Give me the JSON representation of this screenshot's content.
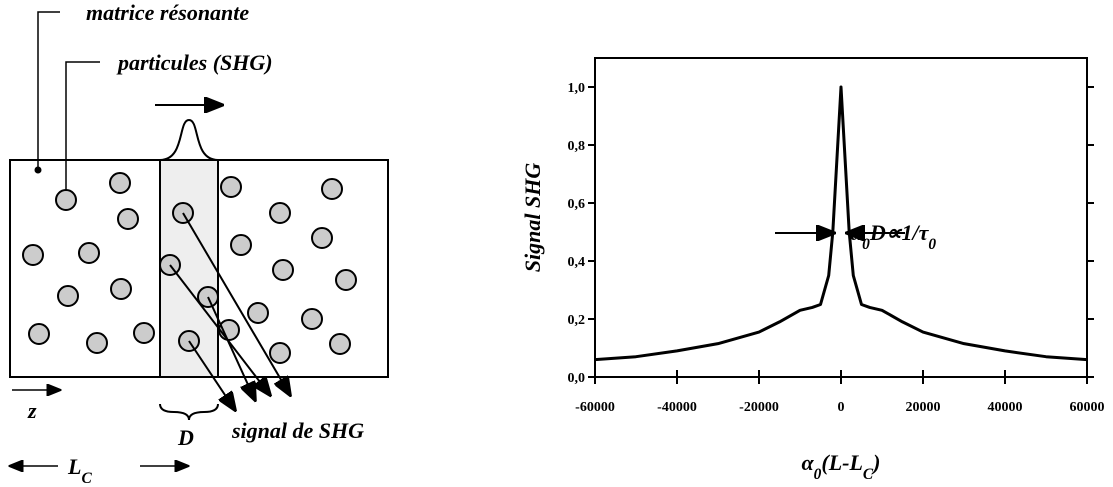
{
  "diagram": {
    "matrix_label": "matrice résonante",
    "particles_label": "particules (SHG)",
    "z_label": "z",
    "d_label": "D",
    "signal_label": "signal de SHG",
    "length_label": [
      {
        "text": "L"
      },
      {
        "sub": "C"
      }
    ]
  },
  "chart_data": {
    "type": "line",
    "y_label": "Signal SHG",
    "x_label": [
      {
        "text": "α"
      },
      {
        "sub": "0"
      },
      {
        "text": "(L-L"
      },
      {
        "sub": "C"
      },
      {
        "text": ")"
      }
    ],
    "annotation": [
      {
        "text": "α"
      },
      {
        "sub": "0"
      },
      {
        "text": "D∝1/τ"
      },
      {
        "sub": "0"
      }
    ],
    "x": [
      -60000,
      -50000,
      -40000,
      -30000,
      -20000,
      -15000,
      -10000,
      -7000,
      -5000,
      -3000,
      -2000,
      -1000,
      0,
      1000,
      2000,
      3000,
      5000,
      7000,
      10000,
      15000,
      20000,
      30000,
      40000,
      50000,
      60000
    ],
    "series": [
      {
        "name": "Signal SHG",
        "color": "#000000",
        "values": [
          0.06,
          0.07,
          0.09,
          0.115,
          0.155,
          0.19,
          0.23,
          0.24,
          0.25,
          0.35,
          0.5,
          0.75,
          1.0,
          0.75,
          0.5,
          0.35,
          0.25,
          0.24,
          0.23,
          0.19,
          0.155,
          0.115,
          0.09,
          0.07,
          0.06
        ]
      }
    ],
    "xlim": [
      -60000,
      60000
    ],
    "ylim": [
      0,
      1.1
    ],
    "xticks": [
      -60000,
      -40000,
      -20000,
      0,
      20000,
      40000,
      60000
    ],
    "yticks": [
      {
        "value": 0,
        "label": "0,0"
      },
      {
        "value": 0.2,
        "label": "0,2"
      },
      {
        "value": 0.4,
        "label": "0,4"
      },
      {
        "value": 0.6,
        "label": "0,6"
      },
      {
        "value": 0.8,
        "label": "0,8"
      },
      {
        "value": 1.0,
        "label": "1,0"
      }
    ]
  }
}
